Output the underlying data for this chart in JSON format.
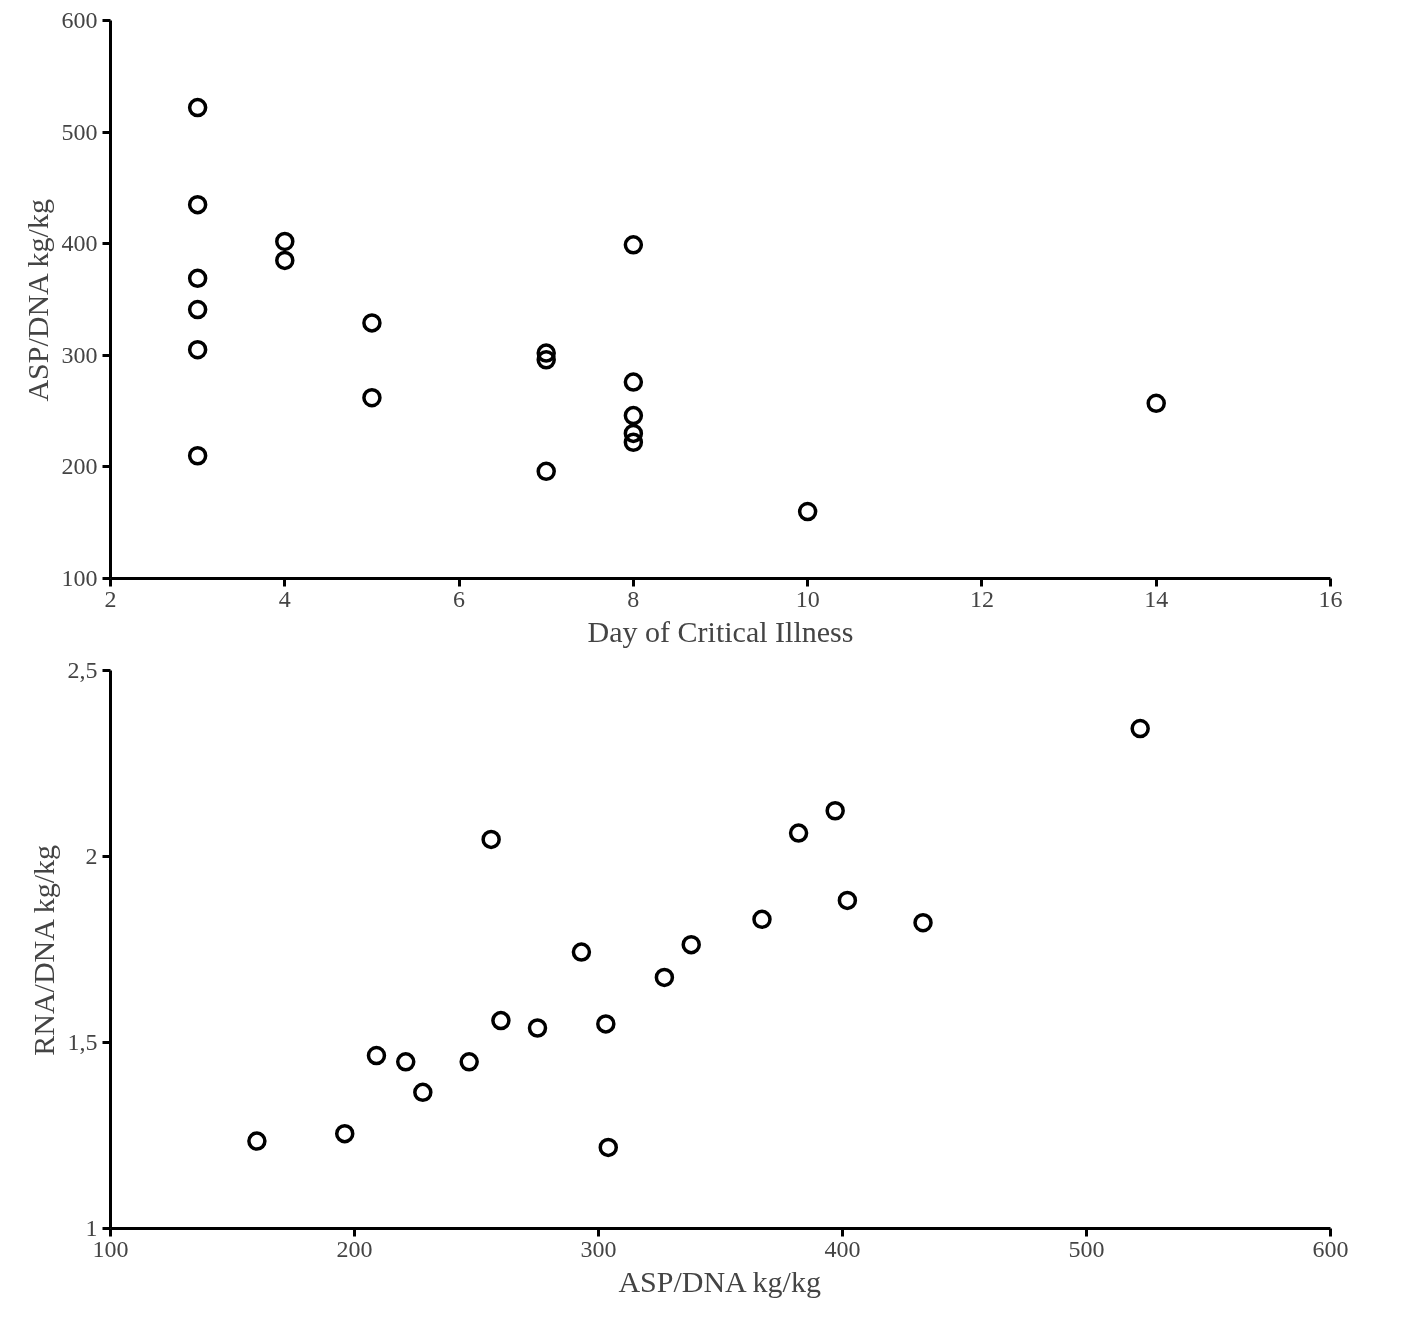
{
  "chart_data": [
    {
      "type": "scatter",
      "xlabel": "Day of Critical Illness",
      "ylabel": "ASP/DNA kg/kg",
      "marker": "circle",
      "grid": false,
      "xlim": [
        2,
        16
      ],
      "xticks": [
        2,
        4,
        6,
        8,
        10,
        12,
        14,
        16
      ],
      "ylim": [
        100,
        600
      ],
      "yticks": [
        100,
        200,
        300,
        400,
        500,
        600
      ],
      "series": [
        {
          "color": "#000000",
          "x": [
            3,
            3,
            3,
            3,
            3,
            3,
            4,
            4,
            5,
            5,
            7,
            7,
            7,
            8,
            8,
            8,
            8,
            8,
            10,
            14
          ],
          "values": [
            522,
            435,
            369,
            341,
            305,
            210,
            402,
            385,
            329,
            262,
            302,
            296,
            196,
            399,
            276,
            246,
            230,
            222,
            160,
            257
          ]
        }
      ]
    },
    {
      "type": "scatter",
      "xlabel": "ASP/DNA kg/kg",
      "ylabel": "RNA/DNA kg/kg",
      "marker": "circle",
      "grid": false,
      "xlim": [
        100,
        600
      ],
      "xticks": [
        100,
        200,
        300,
        400,
        500,
        600
      ],
      "ylim": [
        1,
        2.5
      ],
      "yticks": [
        1,
        {
          "value": 1.5,
          "label": "1,5"
        },
        2,
        {
          "value": 2.5,
          "label": "2,5"
        }
      ],
      "series": [
        {
          "color": "#000000",
          "x": [
            160,
            196,
            209,
            221,
            228,
            247,
            256,
            260,
            275,
            293,
            303,
            304,
            327,
            338,
            367,
            382,
            397,
            402,
            433,
            522
          ],
          "values": [
            1.235,
            1.255,
            1.465,
            1.448,
            1.366,
            1.448,
            2.046,
            1.559,
            1.539,
            1.743,
            1.55,
            1.218,
            1.675,
            1.763,
            1.831,
            2.063,
            2.123,
            1.882,
            1.822,
            2.344
          ]
        }
      ]
    }
  ]
}
